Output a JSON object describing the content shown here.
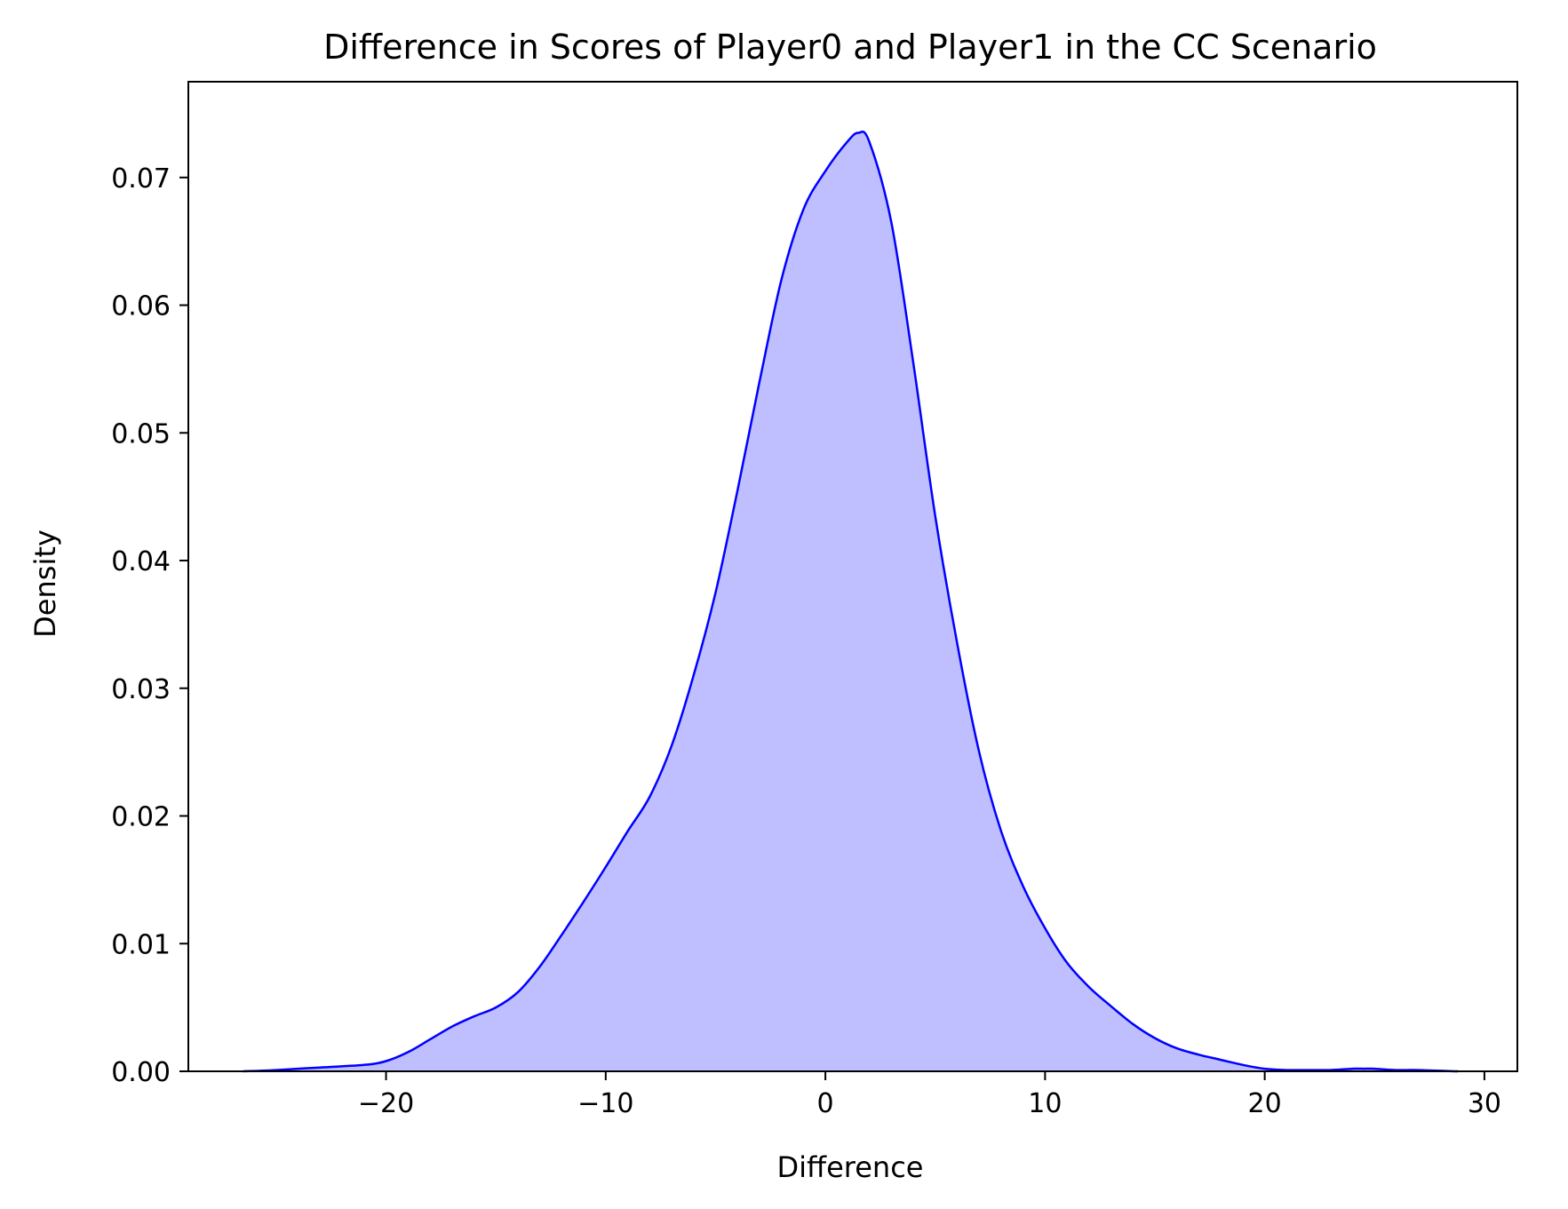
{
  "chart_data": {
    "type": "area",
    "title": "Difference in Scores of Player0 and Player1 in the CC Scenario",
    "xlabel": "Difference",
    "ylabel": "Density",
    "xlim": [
      -29,
      31.5
    ],
    "ylim": [
      0,
      0.0775
    ],
    "xticks": [
      -20,
      -10,
      0,
      10,
      20,
      30
    ],
    "xtick_labels": [
      "−20",
      "−10",
      "0",
      "10",
      "20",
      "30"
    ],
    "yticks": [
      0,
      0.01,
      0.02,
      0.03,
      0.04,
      0.05,
      0.06,
      0.07
    ],
    "ytick_labels": [
      "0.00",
      "0.01",
      "0.02",
      "0.03",
      "0.04",
      "0.05",
      "0.06",
      "0.07"
    ],
    "grid": false,
    "line_color": "#0000ff",
    "fill_color": "#bfbfff",
    "series": [
      {
        "x": [
          -26.5,
          -25,
          -23,
          -21,
          -20,
          -19,
          -18,
          -17,
          -16,
          -15,
          -14,
          -13,
          -12,
          -11,
          -10,
          -9,
          -8,
          -7,
          -6,
          -5,
          -4,
          -3,
          -2,
          -1,
          0,
          1,
          1.5,
          2,
          3,
          4,
          5,
          6,
          7,
          8,
          9,
          10,
          11,
          12,
          13,
          14,
          15,
          16,
          17,
          18,
          19,
          20,
          21,
          22,
          23,
          24,
          24.5,
          25,
          26,
          27,
          28.8
        ],
        "y": [
          0.0,
          0.0001,
          0.0003,
          0.0005,
          0.0008,
          0.0015,
          0.0025,
          0.0035,
          0.0043,
          0.005,
          0.0062,
          0.0082,
          0.0107,
          0.0133,
          0.016,
          0.0188,
          0.0215,
          0.0255,
          0.031,
          0.0375,
          0.0455,
          0.054,
          0.062,
          0.0675,
          0.0705,
          0.0728,
          0.0735,
          0.0728,
          0.0665,
          0.0555,
          0.0435,
          0.0335,
          0.025,
          0.0188,
          0.0145,
          0.0112,
          0.0085,
          0.0066,
          0.0051,
          0.0037,
          0.0026,
          0.0018,
          0.0013,
          0.0009,
          0.0005,
          0.0002,
          0.0001,
          0.0001,
          0.0001,
          0.0002,
          0.0002,
          0.0002,
          0.0001,
          0.0001,
          0.0
        ]
      }
    ]
  }
}
